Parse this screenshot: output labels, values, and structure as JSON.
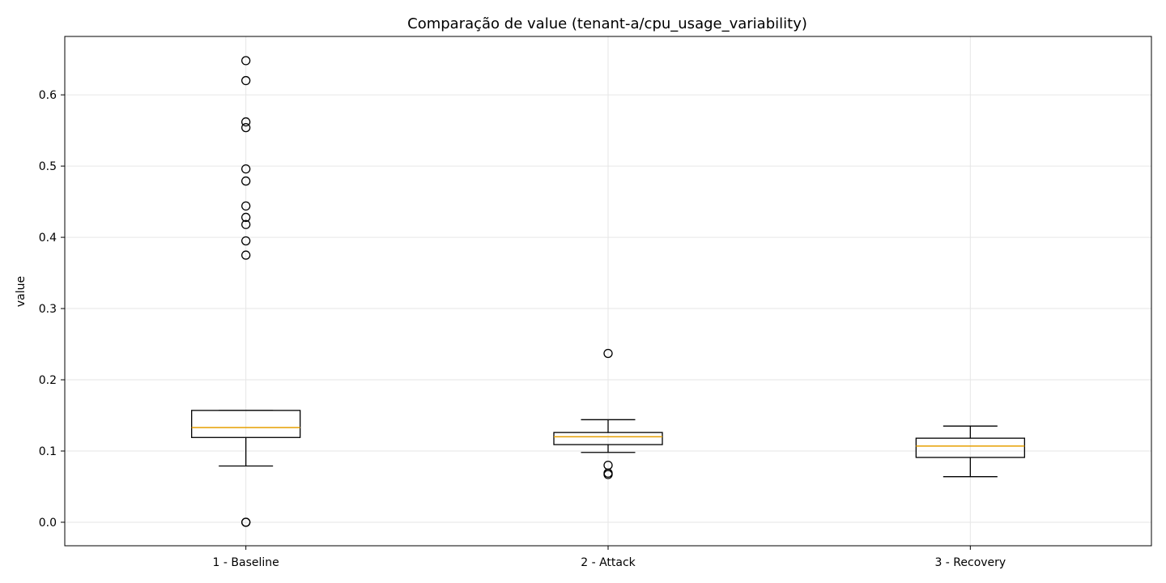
{
  "chart_data": {
    "type": "box",
    "title": "Comparação de value (tenant-a/cpu_usage_variability)",
    "xlabel": "",
    "ylabel": "value",
    "ylim": [
      -0.033,
      0.682
    ],
    "yticks": [
      0.0,
      0.1,
      0.2,
      0.3,
      0.4,
      0.5,
      0.6
    ],
    "ytick_labels": [
      "0.0",
      "0.1",
      "0.2",
      "0.3",
      "0.4",
      "0.5",
      "0.6"
    ],
    "grid": true,
    "categories": [
      "1 - Baseline",
      "2 - Attack",
      "3 - Recovery"
    ],
    "boxes": [
      {
        "category": "1 - Baseline",
        "whisker_low": 0.079,
        "q1": 0.119,
        "median": 0.133,
        "q3": 0.157,
        "whisker_high": 0.157,
        "outliers": [
          0.0,
          0.0,
          0.375,
          0.395,
          0.418,
          0.428,
          0.444,
          0.479,
          0.496,
          0.554,
          0.562,
          0.62,
          0.648
        ]
      },
      {
        "category": "2 - Attack",
        "whisker_low": 0.098,
        "q1": 0.109,
        "median": 0.12,
        "q3": 0.126,
        "whisker_high": 0.144,
        "outliers": [
          0.067,
          0.069,
          0.08,
          0.237
        ]
      },
      {
        "category": "3 - Recovery",
        "whisker_low": 0.064,
        "q1": 0.091,
        "median": 0.107,
        "q3": 0.118,
        "whisker_high": 0.135,
        "outliers": []
      }
    ],
    "colors": {
      "box": "#000000",
      "median": "#e69f00",
      "grid": "#e6e6e6"
    }
  }
}
